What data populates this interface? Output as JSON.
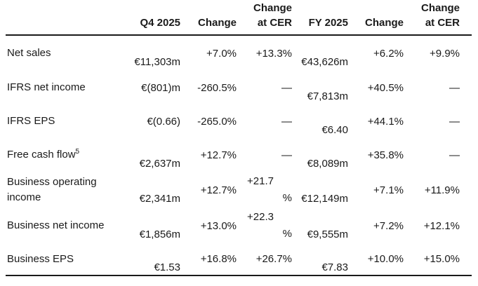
{
  "table": {
    "header": {
      "q4": "Q4 2025",
      "change_q4": "Change",
      "cer_q4_line1": "Change",
      "cer_q4_line2": "at CER",
      "fy": "FY 2025",
      "change_fy": "Change",
      "cer_fy_line1": "Change",
      "cer_fy_line2": "at CER"
    },
    "rows": [
      {
        "label": "Net sales",
        "q4": "€11,303m",
        "q4_change": "+7.0%",
        "q4_cer": "+13.3%",
        "fy": "€43,626m",
        "fy_change": "+6.2%",
        "fy_cer": "+9.9%"
      },
      {
        "label": "IFRS net income",
        "q4": "€(801)m",
        "q4_change": "-260.5%",
        "q4_cer": "—",
        "fy": "€7,813m",
        "fy_change": "+40.5%",
        "fy_cer": "—"
      },
      {
        "label": "IFRS EPS",
        "q4": "€(0.66)",
        "q4_change": "-265.0%",
        "q4_cer": "—",
        "fy": "€6.40",
        "fy_change": "+44.1%",
        "fy_cer": "—"
      },
      {
        "label": "Free cash flow",
        "label_sup": "5",
        "q4": "€2,637m",
        "q4_change": "+12.7%",
        "q4_cer": "—",
        "fy": "€8,089m",
        "fy_change": "+35.8%",
        "fy_cer": "—"
      },
      {
        "label": "Business operating income",
        "q4": "€2,341m",
        "q4_change": "+12.7%",
        "q4_cer_line1": "+21.7",
        "q4_cer_line2": "%",
        "fy": "€12,149m",
        "fy_change": "+7.1%",
        "fy_cer": "+11.9%"
      },
      {
        "label": "Business net income",
        "q4": "€1,856m",
        "q4_change": "+13.0%",
        "q4_cer_line1": "+22.3",
        "q4_cer_line2": "%",
        "fy": "€9,555m",
        "fy_change": "+7.2%",
        "fy_cer": "+12.1%"
      },
      {
        "label": "Business EPS",
        "q4": "€1.53",
        "q4_change": "+16.8%",
        "q4_cer": "+26.7%",
        "fy": "€7.83",
        "fy_change": "+10.0%",
        "fy_cer": "+15.0%"
      }
    ]
  }
}
